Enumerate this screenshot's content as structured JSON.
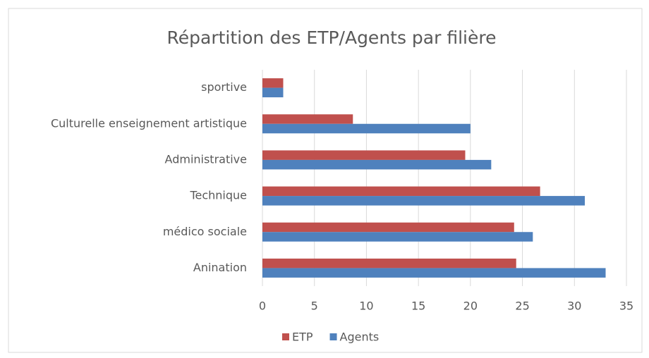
{
  "chart_data": {
    "type": "hbar",
    "title": "Répartition des ETP/Agents par filière",
    "categories": [
      "sportive",
      "Culturelle enseignement artistique",
      "Administrative",
      "Technique",
      "médico sociale",
      "Anination"
    ],
    "series": [
      {
        "name": "ETP",
        "color": "#c0504d",
        "values": [
          2,
          8.7,
          19.5,
          26.7,
          24.2,
          24.4
        ]
      },
      {
        "name": "Agents",
        "color": "#4f81bd",
        "values": [
          2,
          20,
          22,
          31,
          26,
          33
        ]
      }
    ],
    "xlim": [
      0,
      35
    ],
    "xticks": [
      0,
      5,
      10,
      15,
      20,
      25,
      30,
      35
    ],
    "grid": true,
    "legend": "bottom"
  }
}
